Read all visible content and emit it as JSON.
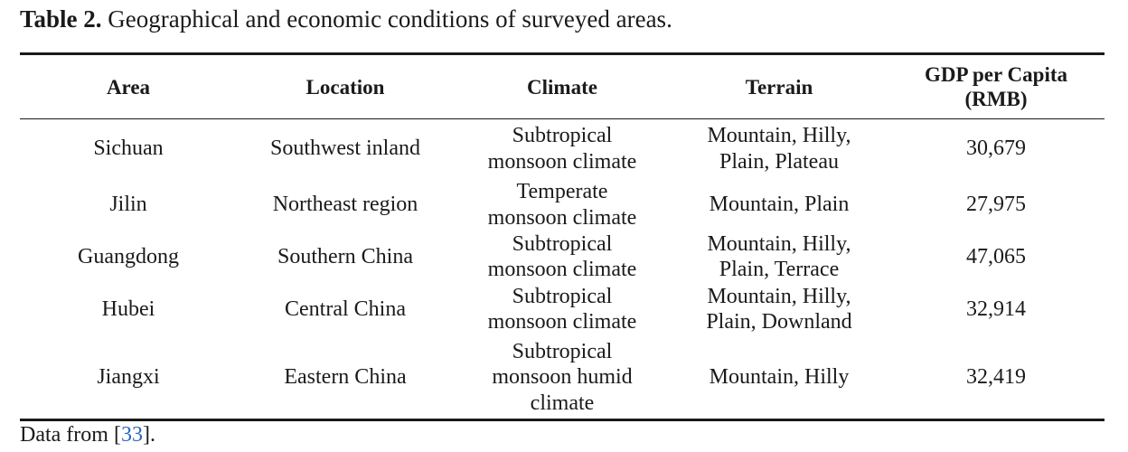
{
  "caption": {
    "label": "Table 2.",
    "text": " Geographical and economic conditions of surveyed areas."
  },
  "table": {
    "headers": {
      "area": "Area",
      "location": "Location",
      "climate": "Climate",
      "terrain": "Terrain",
      "gdp_line1": "GDP per Capita",
      "gdp_line2": "(RMB)"
    },
    "rows": [
      {
        "area": "Sichuan",
        "location": "Southwest inland",
        "climate": [
          "Subtropical",
          "monsoon climate"
        ],
        "terrain": [
          "Mountain, Hilly,",
          "Plain, Plateau"
        ],
        "gdp": "30,679"
      },
      {
        "area": "Jilin",
        "location": "Northeast region",
        "climate": [
          "Temperate",
          "monsoon climate"
        ],
        "terrain": [
          "Mountain, Plain"
        ],
        "gdp": "27,975"
      },
      {
        "area": "Guangdong",
        "location": "Southern China",
        "climate": [
          "Subtropical",
          "monsoon climate"
        ],
        "terrain": [
          "Mountain, Hilly,",
          "Plain, Terrace"
        ],
        "gdp": "47,065"
      },
      {
        "area": "Hubei",
        "location": "Central China",
        "climate": [
          "Subtropical",
          "monsoon climate"
        ],
        "terrain": [
          "Mountain, Hilly,",
          "Plain, Downland"
        ],
        "gdp": "32,914"
      },
      {
        "area": "Jiangxi",
        "location": "Eastern China",
        "climate": [
          "Subtropical",
          "monsoon humid",
          "climate"
        ],
        "terrain": [
          "Mountain, Hilly"
        ],
        "gdp": "32,419"
      }
    ]
  },
  "footnote": {
    "prefix": "Data from [",
    "ref": "33",
    "suffix": "]."
  }
}
